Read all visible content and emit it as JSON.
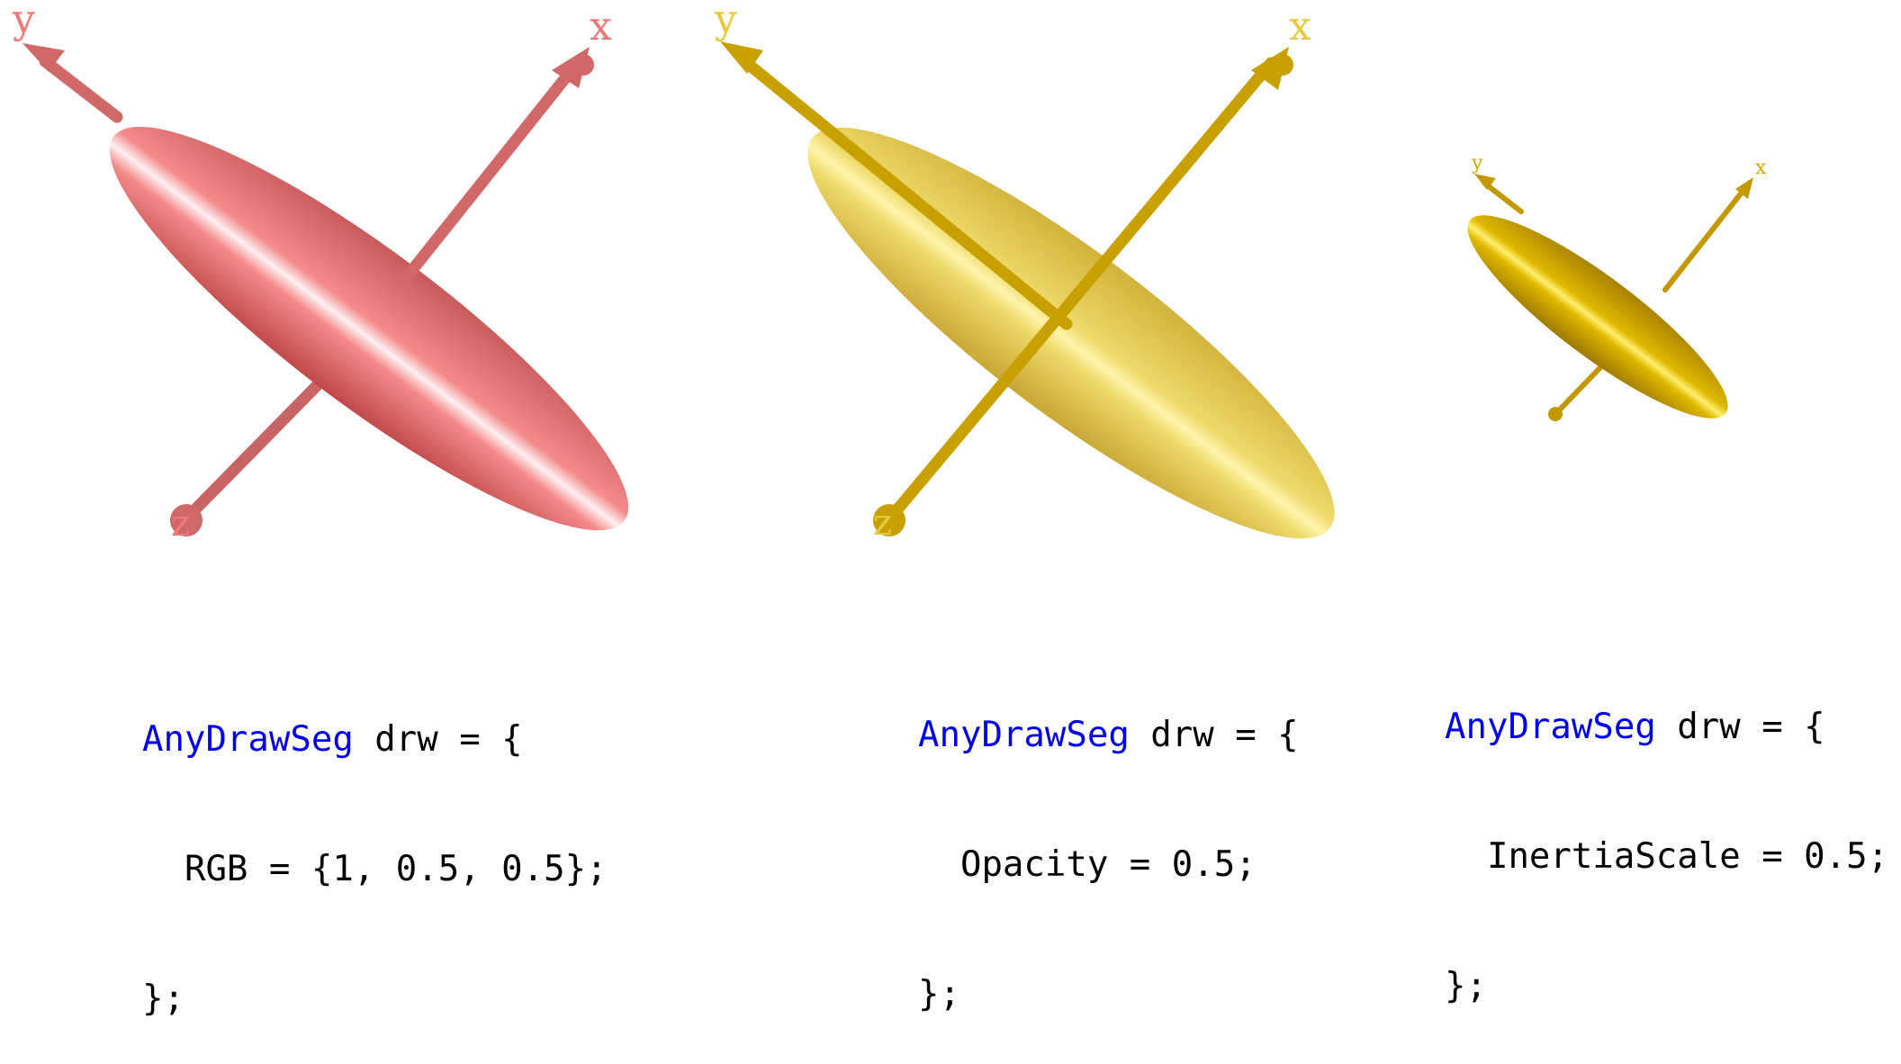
{
  "panels": [
    {
      "axis_labels": {
        "x": "x",
        "y": "y",
        "z": "z"
      },
      "color": "#f07878",
      "code": {
        "keyword": "AnyDrawSeg",
        "line1_rest": " drw = {",
        "line2": "  RGB = {1, 0.5, 0.5};",
        "line3": "};"
      }
    },
    {
      "axis_labels": {
        "x": "x",
        "y": "y",
        "z": "z"
      },
      "color": "#e8c93c",
      "code": {
        "keyword": "AnyDrawSeg",
        "line1_rest": " drw = {",
        "line2": "  Opacity = 0.5;",
        "line3": "};"
      }
    },
    {
      "axis_labels": {
        "x": "x",
        "y": "y"
      },
      "color": "#d4aa00",
      "code": {
        "keyword": "AnyDrawSeg",
        "line1_rest": " drw = {",
        "line2": "  InertiaScale = 0.5;",
        "line3": "};"
      }
    }
  ]
}
